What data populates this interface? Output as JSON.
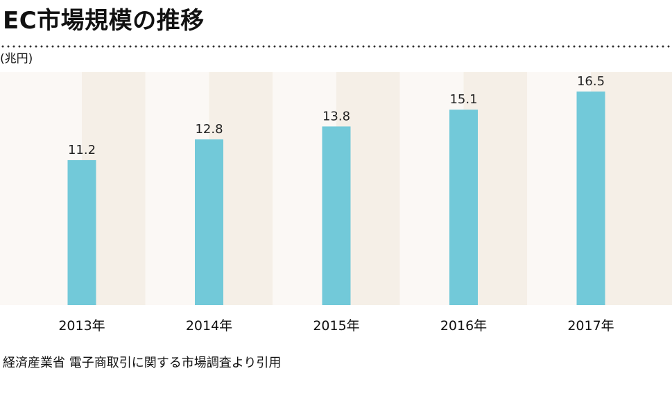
{
  "header": {
    "title": "EC市場規模の推移"
  },
  "chart_data": {
    "type": "bar",
    "unit_label": "(兆円)",
    "categories": [
      "2013年",
      "2014年",
      "2015年",
      "2016年",
      "2017年"
    ],
    "values": [
      11.2,
      12.8,
      13.8,
      15.1,
      16.5
    ],
    "value_labels": [
      "11.2",
      "12.8",
      "13.8",
      "15.1",
      "16.5"
    ],
    "ylim": [
      0,
      18
    ],
    "grid": false,
    "legend": "none",
    "colors": {
      "bar": "#72c9d9",
      "band_dark": "#f5efe7",
      "band_light": "#fbf8f5"
    }
  },
  "footer": {
    "source": "経済産業省 電子商取引に関する市場調査より引用"
  }
}
